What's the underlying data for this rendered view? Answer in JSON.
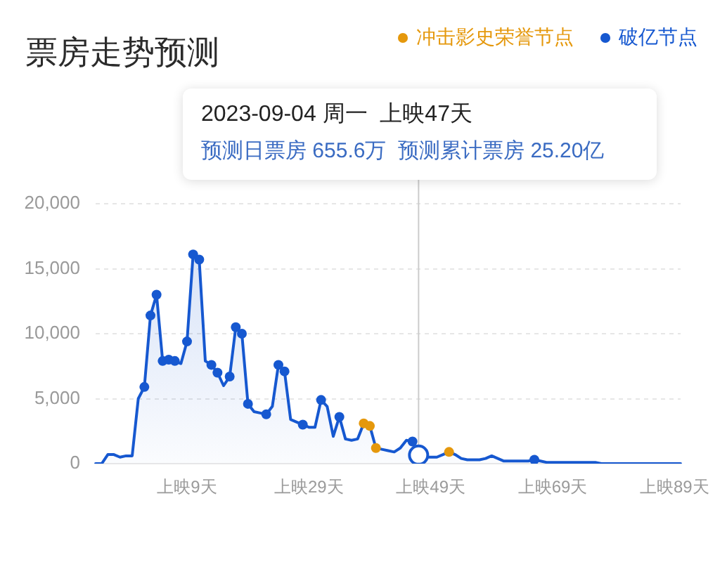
{
  "chart_data": {
    "type": "area",
    "title": "票房走势预测",
    "annotations": [
      "2023-09-04 周一  上映47天",
      "预测日票房 655.6万  预测累计票房 25.20亿"
    ],
    "categories": [
      null,
      null,
      null,
      null,
      null,
      null,
      null,
      null,
      null,
      null,
      null,
      null,
      null,
      null,
      null,
      "上映9天",
      null,
      null,
      null,
      null,
      null,
      null,
      null,
      null,
      null,
      null,
      null,
      null,
      null,
      null,
      null,
      null,
      null,
      null,
      null,
      "上映29天",
      null,
      null,
      null,
      null,
      null,
      null,
      null,
      null,
      null,
      null,
      null,
      null,
      null,
      null,
      null,
      null,
      null,
      null,
      null,
      "上映49天",
      null,
      null,
      null,
      null,
      null,
      null,
      null,
      null,
      null,
      null,
      null,
      null,
      null,
      null,
      null,
      null,
      null,
      null,
      null,
      "上映69天",
      null,
      null,
      null,
      null,
      null,
      null,
      null,
      null,
      null,
      null,
      null,
      null,
      null,
      null,
      null,
      null,
      null,
      null,
      null,
      "上映89天",
      null
    ],
    "ylim": [
      0,
      20000
    ],
    "yticks": [
      0,
      {
        "value": 5000,
        "label": "5,000"
      },
      {
        "value": 10000,
        "label": "10,000"
      },
      {
        "value": 15000,
        "label": "15,000"
      },
      {
        "value": 20000,
        "label": "20,000"
      }
    ],
    "grid": "y",
    "legend": "top right",
    "series": [
      {
        "color": "#1658d0",
        "values": [
          0,
          0,
          700,
          700,
          500,
          600,
          600,
          5000,
          5900,
          11400,
          13000,
          7900,
          8000,
          7900,
          7700,
          9400,
          16100,
          15700,
          7900,
          7600,
          7000,
          6000,
          6700,
          10500,
          10000,
          4600,
          4000,
          3900,
          3800,
          4400,
          7600,
          7100,
          3400,
          3200,
          3000,
          2800,
          2800,
          4900,
          4400,
          2100,
          3600,
          1900,
          1800,
          1900,
          3100,
          2900,
          1200,
          1100,
          1000,
          900,
          1200,
          1800,
          1700,
          655.6,
          500,
          500,
          500,
          700,
          900,
          700,
          400,
          300,
          300,
          300,
          400,
          600,
          400,
          200,
          200,
          200,
          200,
          200,
          300,
          200,
          100,
          100,
          100,
          100,
          100,
          100,
          100,
          100,
          100,
          0,
          0,
          0,
          0,
          0,
          0,
          0,
          0,
          0,
          0,
          0,
          0,
          0,
          0
        ]
      },
      {
        "name": "冲击影史荣誉节点",
        "type": "scatter",
        "marker": "circle",
        "color": "#e5980c",
        "values": [
          null,
          null,
          null,
          null,
          null,
          null,
          null,
          null,
          null,
          null,
          null,
          null,
          null,
          null,
          null,
          null,
          null,
          null,
          null,
          null,
          null,
          null,
          null,
          null,
          null,
          null,
          null,
          null,
          null,
          null,
          null,
          null,
          null,
          null,
          null,
          null,
          null,
          null,
          null,
          null,
          null,
          null,
          null,
          null,
          3100,
          2900,
          1200,
          null,
          null,
          null,
          null,
          null,
          null,
          null,
          null,
          null,
          null,
          null,
          900,
          null,
          null,
          null,
          null,
          null,
          null,
          null,
          null,
          null,
          null,
          null,
          null,
          null,
          null,
          null,
          null,
          null,
          null,
          null,
          null,
          null,
          null,
          null,
          null,
          null,
          null,
          null,
          null,
          null,
          null,
          null,
          null,
          null,
          null,
          null,
          null,
          null,
          null
        ]
      },
      {
        "name": "破亿节点",
        "type": "scatter",
        "marker": "circle",
        "color": "#1658d0",
        "values": [
          null,
          null,
          null,
          null,
          null,
          null,
          null,
          null,
          5900,
          11400,
          13000,
          7900,
          8000,
          7900,
          null,
          9400,
          16100,
          15700,
          null,
          7600,
          7000,
          null,
          6700,
          10500,
          10000,
          4600,
          null,
          null,
          3800,
          null,
          7600,
          7100,
          null,
          null,
          3000,
          null,
          null,
          4900,
          null,
          null,
          3600,
          null,
          null,
          null,
          null,
          null,
          null,
          null,
          null,
          null,
          null,
          null,
          1700,
          null,
          null,
          null,
          null,
          null,
          null,
          null,
          null,
          null,
          null,
          null,
          null,
          null,
          null,
          null,
          null,
          null,
          null,
          null,
          300,
          null,
          null,
          null,
          null,
          null,
          null,
          null,
          null,
          null,
          null,
          null,
          null,
          null,
          null,
          null,
          null,
          null,
          null,
          null,
          null,
          null,
          null,
          null,
          null
        ]
      },
      {
        "type": "scatter",
        "marker": "circle",
        "color": "#1658d0",
        "values": [
          null,
          null,
          null,
          null,
          null,
          null,
          null,
          null,
          null,
          null,
          null,
          null,
          null,
          null,
          null,
          null,
          null,
          null,
          null,
          null,
          null,
          null,
          null,
          null,
          null,
          null,
          null,
          null,
          null,
          null,
          null,
          null,
          null,
          null,
          null,
          null,
          null,
          null,
          null,
          null,
          null,
          null,
          null,
          null,
          null,
          null,
          null,
          null,
          null,
          null,
          null,
          null,
          null,
          655.6,
          null,
          null,
          null,
          null,
          null,
          null,
          null,
          null,
          null,
          null,
          null,
          null,
          null,
          null,
          null,
          null,
          null,
          null,
          null,
          null,
          null,
          null,
          null,
          null,
          null,
          null,
          null,
          null,
          null,
          null,
          null,
          null,
          null,
          null,
          null,
          null,
          null,
          null,
          null,
          null,
          null,
          null,
          null
        ]
      }
    ]
  }
}
